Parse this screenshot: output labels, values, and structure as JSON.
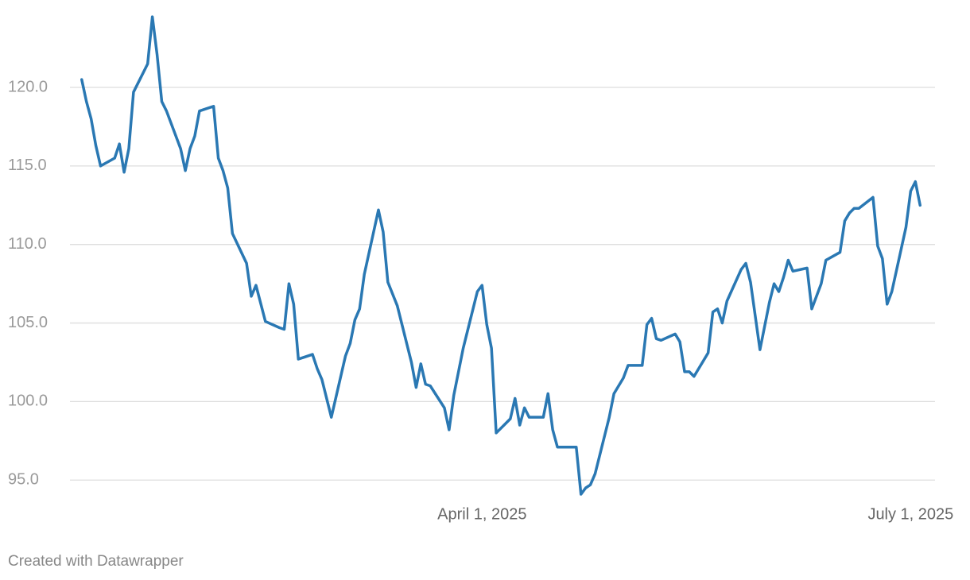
{
  "chart_data": {
    "type": "line",
    "x": [
      "2025-01-06",
      "2025-01-07",
      "2025-01-08",
      "2025-01-09",
      "2025-01-10",
      "2025-01-13",
      "2025-01-14",
      "2025-01-15",
      "2025-01-16",
      "2025-01-17",
      "2025-01-20",
      "2025-01-21",
      "2025-01-22",
      "2025-01-23",
      "2025-01-24",
      "2025-01-27",
      "2025-01-28",
      "2025-01-29",
      "2025-01-30",
      "2025-01-31",
      "2025-02-03",
      "2025-02-04",
      "2025-02-05",
      "2025-02-06",
      "2025-02-07",
      "2025-02-10",
      "2025-02-11",
      "2025-02-12",
      "2025-02-14",
      "2025-02-17",
      "2025-02-18",
      "2025-02-19",
      "2025-02-20",
      "2025-02-21",
      "2025-02-24",
      "2025-02-25",
      "2025-02-26",
      "2025-02-28",
      "2025-03-03",
      "2025-03-04",
      "2025-03-05",
      "2025-03-06",
      "2025-03-07",
      "2025-03-10",
      "2025-03-11",
      "2025-03-12",
      "2025-03-14",
      "2025-03-17",
      "2025-03-18",
      "2025-03-19",
      "2025-03-20",
      "2025-03-21",
      "2025-03-24",
      "2025-03-25",
      "2025-03-26",
      "2025-03-28",
      "2025-03-31",
      "2025-04-01",
      "2025-04-02",
      "2025-04-03",
      "2025-04-04",
      "2025-04-07",
      "2025-04-08",
      "2025-04-09",
      "2025-04-10",
      "2025-04-11",
      "2025-04-14",
      "2025-04-15",
      "2025-04-16",
      "2025-04-17",
      "2025-04-21",
      "2025-04-22",
      "2025-04-23",
      "2025-04-24",
      "2025-04-25",
      "2025-04-28",
      "2025-04-29",
      "2025-05-01",
      "2025-05-02",
      "2025-05-05",
      "2025-05-06",
      "2025-05-07",
      "2025-05-08",
      "2025-05-09",
      "2025-05-12",
      "2025-05-13",
      "2025-05-14",
      "2025-05-15",
      "2025-05-16",
      "2025-05-19",
      "2025-05-20",
      "2025-05-21",
      "2025-05-22",
      "2025-05-23",
      "2025-05-26",
      "2025-05-27",
      "2025-05-28",
      "2025-05-30",
      "2025-06-01",
      "2025-06-02",
      "2025-06-03",
      "2025-06-04",
      "2025-06-05",
      "2025-06-06",
      "2025-06-09",
      "2025-06-10",
      "2025-06-12",
      "2025-06-13",
      "2025-06-16",
      "2025-06-17",
      "2025-06-18",
      "2025-06-19",
      "2025-06-20",
      "2025-06-23",
      "2025-06-24",
      "2025-06-25",
      "2025-06-26",
      "2025-06-27",
      "2025-06-30",
      "2025-07-01",
      "2025-07-02",
      "2025-07-03"
    ],
    "values": [
      120.5,
      119.1,
      118.0,
      116.3,
      115.0,
      115.5,
      116.4,
      114.6,
      116.1,
      119.7,
      121.5,
      124.5,
      122.1,
      119.1,
      118.5,
      116.1,
      114.7,
      116.1,
      116.9,
      118.5,
      118.8,
      115.5,
      114.7,
      113.6,
      110.7,
      108.8,
      106.7,
      107.4,
      105.1,
      104.7,
      104.6,
      107.5,
      106.2,
      102.7,
      103.0,
      102.1,
      101.4,
      99.0,
      102.9,
      103.7,
      105.2,
      105.9,
      108.1,
      112.2,
      110.8,
      107.6,
      106.1,
      102.5,
      100.9,
      102.4,
      101.1,
      101.0,
      99.6,
      98.2,
      100.4,
      103.4,
      107.0,
      107.4,
      104.9,
      103.4,
      98.0,
      98.9,
      100.2,
      98.5,
      99.6,
      99.0,
      99.0,
      100.5,
      98.2,
      97.1,
      97.1,
      94.1,
      94.5,
      94.7,
      95.4,
      99.0,
      100.5,
      101.5,
      102.3,
      102.3,
      104.9,
      105.3,
      104.0,
      103.9,
      104.3,
      103.8,
      101.9,
      101.9,
      101.6,
      103.1,
      105.7,
      105.9,
      105.0,
      106.4,
      108.4,
      108.8,
      107.6,
      103.3,
      106.3,
      107.5,
      107.0,
      107.9,
      109.0,
      108.3,
      108.5,
      105.9,
      107.5,
      109.0,
      109.5,
      111.5,
      112.0,
      112.3,
      112.3,
      113.0,
      109.9,
      109.1,
      106.2,
      107.0,
      111.1,
      113.4,
      114.0,
      112.5
    ],
    "color": "#2a78b3",
    "xlim": [
      "2025-01-03",
      "2025-07-06"
    ],
    "xticks": [
      {
        "value": "2025-04-01",
        "label": "April 1, 2025"
      },
      {
        "value": "2025-07-01",
        "label": "July 1, 2025"
      }
    ],
    "ylim": [
      94,
      125.5
    ],
    "yticks": [
      {
        "value": 95,
        "label": "95.0"
      },
      {
        "value": 100,
        "label": "100.0"
      },
      {
        "value": 105,
        "label": "105.0"
      },
      {
        "value": 110,
        "label": "110.0"
      },
      {
        "value": 115,
        "label": "115.0"
      },
      {
        "value": 120,
        "label": "120.0"
      }
    ],
    "grid": true,
    "credit": "Created with Datawrapper"
  }
}
